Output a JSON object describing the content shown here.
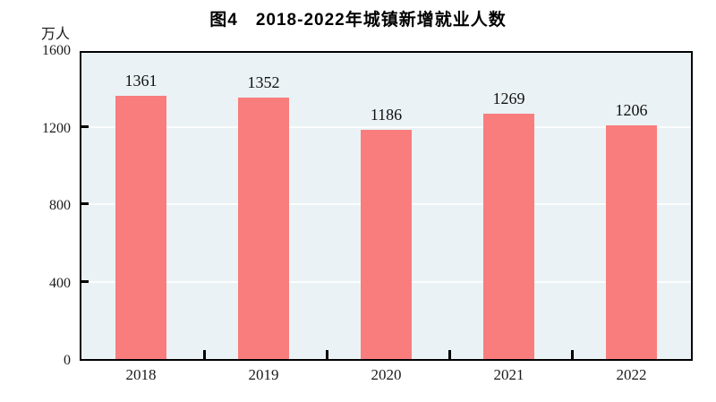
{
  "page": {
    "background_color": "#ffffff"
  },
  "chart_data": {
    "type": "bar",
    "title": "图4　2018-2022年城镇新增就业人数",
    "ylabel": "万人",
    "xlabel": "",
    "categories": [
      "2018",
      "2019",
      "2020",
      "2021",
      "2022"
    ],
    "values": [
      1361,
      1352,
      1186,
      1269,
      1206
    ],
    "ylim": [
      0,
      1600
    ],
    "yticks": [
      0,
      400,
      800,
      1200,
      1600
    ],
    "grid": "horizontal-white-lines",
    "legend": "none",
    "data_labels": [
      "1361",
      "1352",
      "1186",
      "1269",
      "1206"
    ],
    "bar_color": "#f97d7d",
    "plot_background_color": "#eaf2f5",
    "axis_color": "#000000",
    "gridline_color": "#ffffff"
  }
}
